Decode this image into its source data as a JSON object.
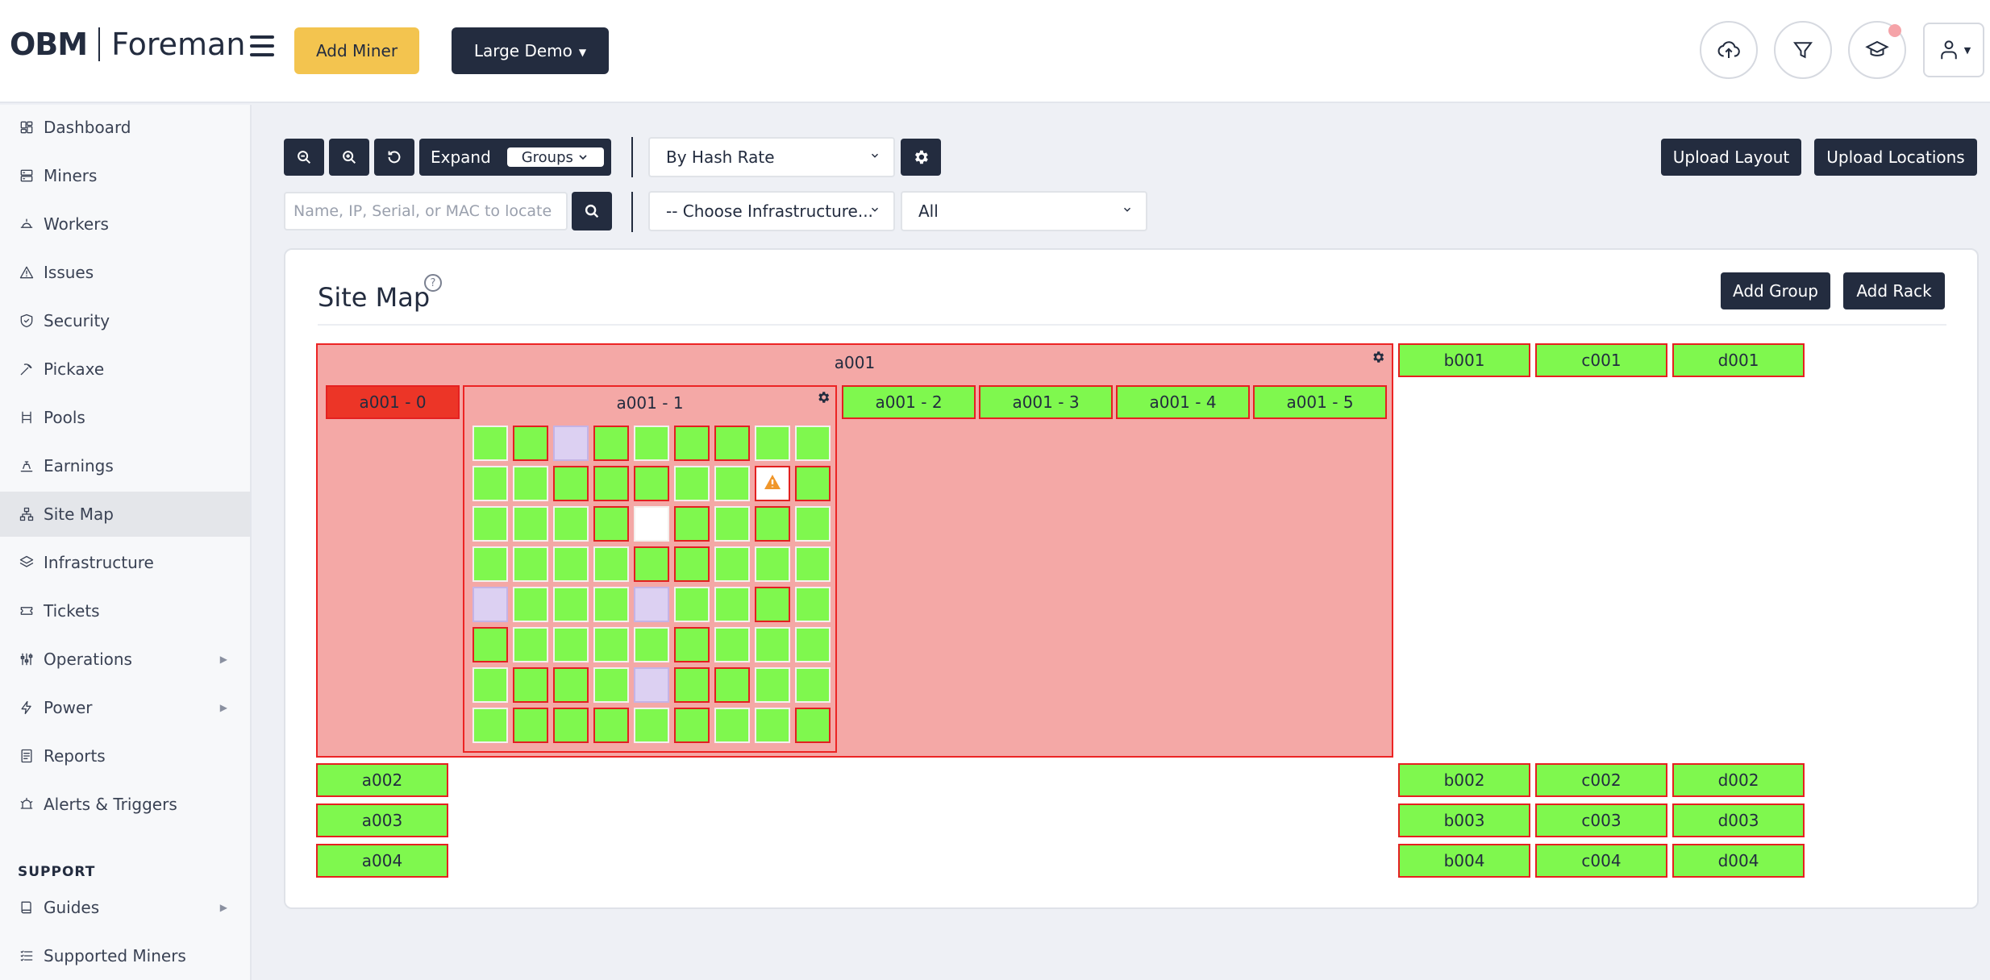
{
  "header": {
    "logo_obm": "OBM",
    "logo_foreman": "Foreman",
    "add_miner_label": "Add Miner",
    "demo_label": "Large Demo"
  },
  "sidebar": {
    "items": [
      {
        "label": "Dashboard",
        "icon": "dashboard-icon"
      },
      {
        "label": "Miners",
        "icon": "server-icon"
      },
      {
        "label": "Workers",
        "icon": "workers-icon"
      },
      {
        "label": "Issues",
        "icon": "warning-icon"
      },
      {
        "label": "Security",
        "icon": "shield-icon"
      },
      {
        "label": "Pickaxe",
        "icon": "pickaxe-icon"
      },
      {
        "label": "Pools",
        "icon": "pools-icon"
      },
      {
        "label": "Earnings",
        "icon": "earnings-icon"
      },
      {
        "label": "Site Map",
        "icon": "sitemap-icon",
        "active": true
      },
      {
        "label": "Infrastructure",
        "icon": "layers-icon"
      },
      {
        "label": "Tickets",
        "icon": "ticket-icon"
      },
      {
        "label": "Operations",
        "icon": "sliders-icon",
        "has_submenu": true
      },
      {
        "label": "Power",
        "icon": "bolt-icon",
        "has_submenu": true
      },
      {
        "label": "Reports",
        "icon": "report-icon"
      },
      {
        "label": "Alerts & Triggers",
        "icon": "alarm-icon"
      }
    ],
    "support_heading": "SUPPORT",
    "support_items": [
      {
        "label": "Guides",
        "icon": "book-icon",
        "has_submenu": true
      },
      {
        "label": "Supported Miners",
        "icon": "list-icon"
      }
    ]
  },
  "toolbar": {
    "expand_label": "Expand",
    "groups_label": "Groups",
    "sort_select": "By Hash Rate",
    "search_placeholder": "Name, IP, Serial, or MAC to locate",
    "infra_select": "-- Choose Infrastructure...",
    "filter_select": "All",
    "upload_layout_label": "Upload Layout",
    "upload_locations_label": "Upload Locations"
  },
  "sitemap": {
    "title": "Site Map",
    "help": "?",
    "add_group_label": "Add Group",
    "add_rack_label": "Add Rack",
    "group_a001": "a001",
    "sub_racks": [
      "a001 - 0",
      "a001 - 1",
      "a001 - 2",
      "a001 - 3",
      "a001 - 4",
      "a001 - 5"
    ],
    "top_racks": [
      "b001",
      "c001",
      "d001"
    ],
    "left_racks": [
      "a002",
      "a003",
      "a004"
    ],
    "right_racks": [
      [
        "b002",
        "c002",
        "d002"
      ],
      [
        "b003",
        "c003",
        "d003"
      ],
      [
        "b004",
        "c004",
        "d004"
      ]
    ],
    "grid": [
      [
        "g",
        "r",
        "l",
        "r",
        "g",
        "r",
        "r",
        "g",
        "g"
      ],
      [
        "g",
        "g",
        "r",
        "r",
        "r",
        "g",
        "g",
        "w",
        "r"
      ],
      [
        "g",
        "g",
        "g",
        "r",
        "e",
        "r",
        "g",
        "r",
        "g"
      ],
      [
        "g",
        "g",
        "g",
        "g",
        "r",
        "r",
        "g",
        "g",
        "g"
      ],
      [
        "l",
        "g",
        "g",
        "g",
        "l",
        "g",
        "g",
        "r",
        "g"
      ],
      [
        "r",
        "g",
        "g",
        "g",
        "g",
        "r",
        "g",
        "g",
        "g"
      ],
      [
        "g",
        "r",
        "r",
        "g",
        "l",
        "r",
        "r",
        "g",
        "g"
      ],
      [
        "g",
        "r",
        "r",
        "r",
        "g",
        "r",
        "g",
        "g",
        "r"
      ]
    ],
    "colors": {
      "ok": "#7ff84e",
      "alert_border": "#e22020",
      "offline": "#dcd0f2",
      "group_bg": "#f4a8a6",
      "rack_alert": "#ec3527"
    }
  }
}
